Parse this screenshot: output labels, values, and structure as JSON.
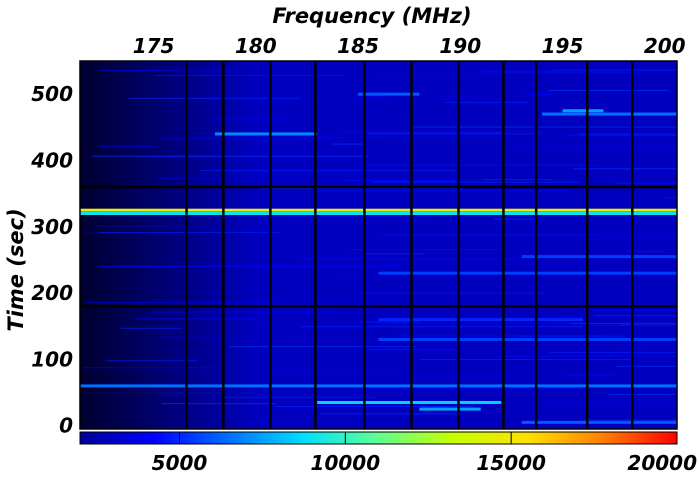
{
  "chart_data": {
    "type": "heatmap",
    "title": "",
    "xlabel": "Frequency (MHz)",
    "ylabel": "Time (sec)",
    "xlim": [
      171.4,
      200.6
    ],
    "ylim": [
      -5,
      550
    ],
    "x_ticks": [
      175,
      180,
      185,
      190,
      195,
      200
    ],
    "y_ticks": [
      0,
      100,
      200,
      300,
      400,
      500
    ],
    "x_tick_labels": [
      "175",
      "180",
      "185",
      "190",
      "195",
      "200"
    ],
    "y_tick_labels": [
      "0",
      "100",
      "200",
      "300",
      "400",
      "500"
    ],
    "colorbar": {
      "orientation": "horizontal",
      "placement": "bottom",
      "range": [
        2000,
        20000
      ],
      "ticks": [
        5000,
        10000,
        15000,
        20000
      ],
      "tick_labels": [
        "5000",
        "10000",
        "15000",
        "20000"
      ],
      "colormap": [
        "#00009a",
        "#0000ff",
        "#0070ff",
        "#00e0ff",
        "#60ff90",
        "#c8ff00",
        "#ffe000",
        "#ff8000",
        "#ff0000"
      ]
    },
    "background_level": 2800,
    "horizontal_bands": [
      {
        "time": 325,
        "level": 14500,
        "freq_from": 171.4,
        "freq_to": 200.6
      },
      {
        "time": 320,
        "level": 9000,
        "freq_from": 171.4,
        "freq_to": 200.6
      },
      {
        "time": 440,
        "level": 7000,
        "freq_from": 178,
        "freq_to": 183
      },
      {
        "time": 470,
        "level": 6500,
        "freq_from": 194,
        "freq_to": 200.6
      },
      {
        "time": 475,
        "level": 7500,
        "freq_from": 195,
        "freq_to": 197
      },
      {
        "time": 500,
        "level": 6000,
        "freq_from": 185,
        "freq_to": 188
      },
      {
        "time": 230,
        "level": 5500,
        "freq_from": 186,
        "freq_to": 200.6
      },
      {
        "time": 255,
        "level": 5500,
        "freq_from": 193,
        "freq_to": 200.6
      },
      {
        "time": 130,
        "level": 5500,
        "freq_from": 186,
        "freq_to": 200.6
      },
      {
        "time": 160,
        "level": 5000,
        "freq_from": 186,
        "freq_to": 196
      },
      {
        "time": 60,
        "level": 6500,
        "freq_from": 171.4,
        "freq_to": 200.6
      },
      {
        "time": 35,
        "level": 8500,
        "freq_from": 183,
        "freq_to": 192
      },
      {
        "time": 25,
        "level": 7500,
        "freq_from": 188,
        "freq_to": 191
      },
      {
        "time": 5,
        "level": 6000,
        "freq_from": 193,
        "freq_to": 200.6
      }
    ],
    "blank_channels_mhz": [
      176.6,
      178.4,
      180.7,
      182.9,
      185.3,
      187.6,
      189.9,
      192.1,
      193.7,
      196.2,
      198.4
    ],
    "blank_times_sec": [
      180,
      360
    ]
  }
}
